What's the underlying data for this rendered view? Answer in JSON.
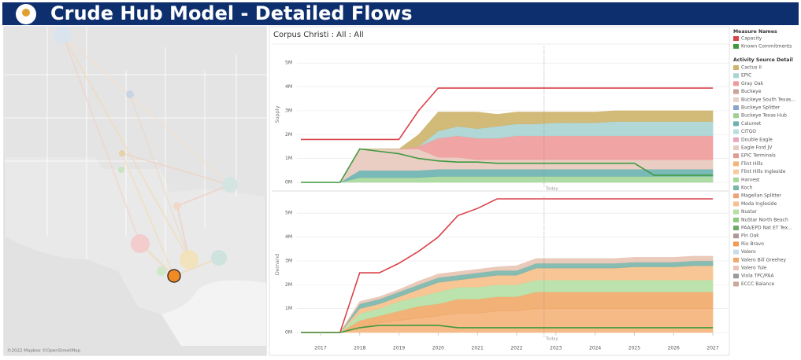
{
  "header": {
    "title": "Crude Hub Model - Detailed Flows"
  },
  "map": {
    "attribution": "©2022 Mapbox ©OpenStreetMap"
  },
  "panel_title": "Corpus Christi : All : All",
  "x": [
    2016.5,
    2017,
    2017.5,
    2018,
    2018.5,
    2019,
    2019.5,
    2020,
    2020.5,
    2021,
    2021.5,
    2022,
    2022.5,
    2023,
    2023.5,
    2024,
    2024.5,
    2025,
    2025.5,
    2026,
    2026.5,
    2027
  ],
  "xlim": [
    2016.4,
    2027.4
  ],
  "xticks": [
    2017,
    2018,
    2019,
    2020,
    2021,
    2022,
    2023,
    2024,
    2025,
    2026,
    2027
  ],
  "today": {
    "x": 2022.7,
    "label": "Today"
  },
  "charts": [
    {
      "type": "area",
      "y_label": "Supply",
      "ylim": [
        0,
        5.7
      ],
      "yticks": [
        {
          "value": 0,
          "label": "0M"
        },
        {
          "value": 1,
          "label": "1M"
        },
        {
          "value": 2,
          "label": "2M"
        },
        {
          "value": 3,
          "label": "3M"
        },
        {
          "value": 4,
          "label": "4M"
        },
        {
          "value": 5,
          "label": "5M"
        }
      ],
      "series": [
        {
          "name": "Harvest",
          "color": "#a6d79a",
          "values": [
            0,
            0,
            0,
            0.2,
            0.2,
            0.2,
            0.2,
            0.25,
            0.25,
            0.25,
            0.25,
            0.25,
            0.25,
            0.25,
            0.25,
            0.25,
            0.25,
            0.25,
            0.25,
            0.25,
            0.25,
            0.25
          ]
        },
        {
          "name": "Calumet",
          "color": "#6ab1b0",
          "values": [
            0,
            0,
            0,
            0.3,
            0.3,
            0.3,
            0.3,
            0.3,
            0.3,
            0.3,
            0.3,
            0.3,
            0.3,
            0.3,
            0.3,
            0.3,
            0.3,
            0.3,
            0.3,
            0.3,
            0.3,
            0.3
          ]
        },
        {
          "name": "Eagle Ford JV",
          "color": "#e8c9bd",
          "values": [
            0,
            0,
            0,
            0.9,
            0.9,
            0.9,
            0.9,
            0.5,
            0.5,
            0.4,
            0.4,
            0.4,
            0.4,
            0.4,
            0.4,
            0.4,
            0.4,
            0.4,
            0.4,
            0.4,
            0.4,
            0.4
          ]
        },
        {
          "name": "Gray Oak",
          "color": "#ee9a9a",
          "values": [
            0,
            0,
            0,
            0,
            0,
            0,
            0.1,
            0.8,
            0.9,
            0.9,
            0.9,
            1.0,
            1.0,
            1.0,
            1.0,
            1.0,
            1.0,
            1.0,
            1.0,
            1.0,
            1.0,
            1.0
          ]
        },
        {
          "name": "EPIC",
          "color": "#a9d3d3",
          "values": [
            0,
            0,
            0,
            0,
            0,
            0,
            0,
            0.3,
            0.4,
            0.4,
            0.5,
            0.5,
            0.5,
            0.55,
            0.55,
            0.55,
            0.6,
            0.6,
            0.6,
            0.6,
            0.6,
            0.6
          ]
        },
        {
          "name": "Cactus II",
          "color": "#cdb46a",
          "values": [
            0,
            0,
            0,
            0,
            0,
            0,
            0.5,
            0.8,
            0.6,
            0.7,
            0.5,
            0.5,
            0.5,
            0.45,
            0.45,
            0.45,
            0.45,
            0.45,
            0.45,
            0.45,
            0.45,
            0.45
          ]
        }
      ],
      "lines": [
        {
          "name": "Capacity",
          "color": "#d9434a",
          "values": [
            1.8,
            1.8,
            1.8,
            1.8,
            1.8,
            1.8,
            3.0,
            3.95,
            3.95,
            3.95,
            3.95,
            3.95,
            3.95,
            3.95,
            3.95,
            3.95,
            3.95,
            3.95,
            3.95,
            3.95,
            3.95,
            3.95
          ]
        },
        {
          "name": "Known Commitments",
          "color": "#3f9a3f",
          "values": [
            0,
            0,
            0,
            1.4,
            1.3,
            1.2,
            1.0,
            0.9,
            0.85,
            0.85,
            0.8,
            0.8,
            0.8,
            0.8,
            0.8,
            0.8,
            0.8,
            0.8,
            0.3,
            0.3,
            0.3,
            0.3
          ]
        }
      ]
    },
    {
      "type": "area",
      "y_label": "Demand",
      "ylim": [
        0,
        5.7
      ],
      "yticks": [
        {
          "value": 0,
          "label": "0M"
        },
        {
          "value": 1,
          "label": "1M"
        },
        {
          "value": 2,
          "label": "2M"
        },
        {
          "value": 3,
          "label": "3M"
        },
        {
          "value": 4,
          "label": "4M"
        },
        {
          "value": 5,
          "label": "5M"
        }
      ],
      "series": [
        {
          "name": "Flint Hills",
          "color": "#f5b27a",
          "values": [
            0,
            0,
            0,
            0.2,
            0.4,
            0.5,
            0.6,
            0.7,
            0.8,
            0.8,
            0.9,
            0.9,
            1.0,
            1.0,
            1.0,
            1.0,
            1.0,
            1.0,
            1.0,
            1.0,
            1.0,
            1.0
          ]
        },
        {
          "name": "Valero Bill Greehey",
          "color": "#f0a868",
          "values": [
            0,
            0,
            0,
            0.3,
            0.3,
            0.4,
            0.5,
            0.5,
            0.6,
            0.6,
            0.6,
            0.6,
            0.7,
            0.7,
            0.7,
            0.7,
            0.7,
            0.7,
            0.7,
            0.7,
            0.7,
            0.7
          ]
        },
        {
          "name": "Nustar",
          "color": "#b5e0a5",
          "values": [
            0,
            0,
            0,
            0.3,
            0.3,
            0.4,
            0.4,
            0.5,
            0.5,
            0.5,
            0.5,
            0.5,
            0.5,
            0.5,
            0.5,
            0.5,
            0.5,
            0.5,
            0.5,
            0.5,
            0.5,
            0.5
          ]
        },
        {
          "name": "Moda Ingleside",
          "color": "#f7c08a",
          "values": [
            0,
            0,
            0,
            0.2,
            0.2,
            0.2,
            0.3,
            0.4,
            0.3,
            0.4,
            0.4,
            0.4,
            0.5,
            0.5,
            0.5,
            0.5,
            0.5,
            0.55,
            0.55,
            0.55,
            0.6,
            0.6
          ]
        },
        {
          "name": "Koch",
          "color": "#79b5a8",
          "values": [
            0,
            0,
            0,
            0.2,
            0.2,
            0.2,
            0.2,
            0.2,
            0.2,
            0.2,
            0.2,
            0.2,
            0.2,
            0.2,
            0.2,
            0.2,
            0.2,
            0.2,
            0.2,
            0.2,
            0.2,
            0.2
          ]
        },
        {
          "name": "Valero Tule",
          "color": "#e8c4b2",
          "values": [
            0,
            0,
            0,
            0.1,
            0.1,
            0.1,
            0.15,
            0.15,
            0.15,
            0.15,
            0.15,
            0.2,
            0.2,
            0.2,
            0.2,
            0.2,
            0.2,
            0.2,
            0.2,
            0.2,
            0.2,
            0.2
          ]
        }
      ],
      "lines": [
        {
          "name": "Capacity",
          "color": "#d9434a",
          "values": [
            0,
            0,
            0,
            2.5,
            2.5,
            2.9,
            3.4,
            4.0,
            4.9,
            5.2,
            5.6,
            5.6,
            5.6,
            5.6,
            5.6,
            5.6,
            5.6,
            5.6,
            5.6,
            5.6,
            5.6,
            5.6
          ]
        },
        {
          "name": "Known Commitments",
          "color": "#3f9a3f",
          "values": [
            0,
            0,
            0,
            0.2,
            0.3,
            0.3,
            0.3,
            0.3,
            0.2,
            0.2,
            0.2,
            0.2,
            0.2,
            0.2,
            0.2,
            0.2,
            0.2,
            0.2,
            0.2,
            0.2,
            0.2,
            0.2
          ]
        }
      ]
    }
  ],
  "legend": {
    "measure_title": "Measure Names",
    "measures": [
      {
        "name": "Capacity",
        "color": "#d9434a"
      },
      {
        "name": "Known Commitments",
        "color": "#3f9a3f"
      }
    ],
    "source_title": "Activity Source Detail",
    "sources": [
      {
        "name": "Cactus II",
        "color": "#cdb46a"
      },
      {
        "name": "EPIC",
        "color": "#a9d3d3"
      },
      {
        "name": "Gray Oak",
        "color": "#ee9a9a"
      },
      {
        "name": "Buckeye",
        "color": "#c9a49a"
      },
      {
        "name": "Buckeye South Texas...",
        "color": "#e6d0c8"
      },
      {
        "name": "Buckeye Splitter",
        "color": "#8aa6c8"
      },
      {
        "name": "Buckeye Texas Hub",
        "color": "#9fcf8f"
      },
      {
        "name": "Calumet",
        "color": "#6ab1b0"
      },
      {
        "name": "CITGO",
        "color": "#b8dede"
      },
      {
        "name": "Double Eagle",
        "color": "#e9a6b8"
      },
      {
        "name": "Eagle Ford JV",
        "color": "#e8c9bd"
      },
      {
        "name": "EPIC Terminals",
        "color": "#e39a90"
      },
      {
        "name": "Flint Hills",
        "color": "#f5b27a"
      },
      {
        "name": "Flint Hills Ingleside",
        "color": "#f6c9a0"
      },
      {
        "name": "Harvest",
        "color": "#a6d79a"
      },
      {
        "name": "Koch",
        "color": "#79b5a8"
      },
      {
        "name": "Magellan Splitter",
        "color": "#f3a073"
      },
      {
        "name": "Moda Ingleside",
        "color": "#f7c08a"
      },
      {
        "name": "Nustar",
        "color": "#b5e0a5"
      },
      {
        "name": "NuStar North Beach",
        "color": "#8cc97e"
      },
      {
        "name": "PAA/EPD Nat ET Tex...",
        "color": "#6fa86a"
      },
      {
        "name": "Pin Oak",
        "color": "#b09898"
      },
      {
        "name": "Rio Bravo",
        "color": "#f29a52"
      },
      {
        "name": "Valero",
        "color": "#c8dcea"
      },
      {
        "name": "Valero Bill Greehey",
        "color": "#f0a868"
      },
      {
        "name": "Valero Tule",
        "color": "#e8c4b2"
      },
      {
        "name": "Viola TPC/PAA",
        "color": "#9a9a9a"
      },
      {
        "name": "ECCC Balance",
        "color": "#c9a89a"
      }
    ]
  }
}
